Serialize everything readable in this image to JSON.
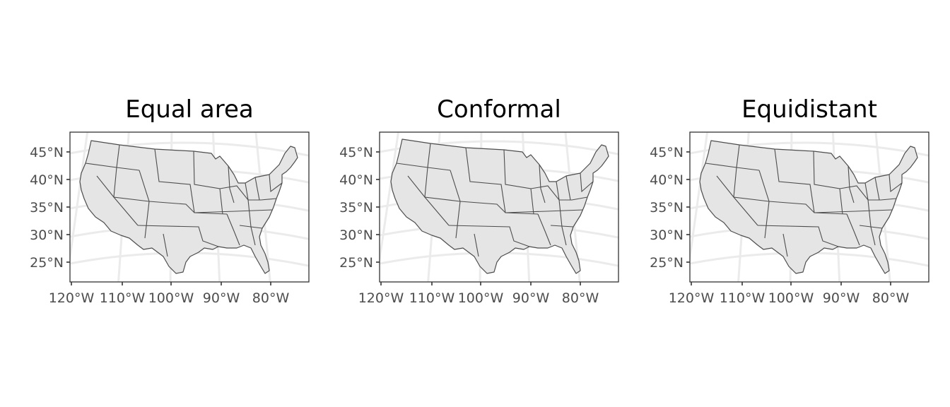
{
  "figure": {
    "panels": [
      {
        "title": "Equal area",
        "projection": "equal-area",
        "lat_labels": [
          "45°N",
          "40°N",
          "35°N",
          "30°N",
          "25°N"
        ],
        "lon_labels": [
          "120°W",
          "110°W",
          "100°W",
          "90°W",
          "80°W"
        ]
      },
      {
        "title": "Conformal",
        "projection": "conformal",
        "lat_labels": [
          "45°N",
          "40°N",
          "35°N",
          "30°N",
          "25°N"
        ],
        "lon_labels": [
          "120°W",
          "110°W",
          "100°W",
          "90°W",
          "80°W"
        ]
      },
      {
        "title": "Equidistant",
        "projection": "equidistant",
        "lat_labels": [
          "45°N",
          "40°N",
          "35°N",
          "30°N",
          "25°N"
        ],
        "lon_labels": [
          "120°W",
          "110°W",
          "100°W",
          "90°W",
          "80°W"
        ]
      }
    ],
    "colors": {
      "land_fill": "#e5e5e5",
      "border": "#4d4d4d",
      "graticule": "#ebebeb",
      "frame": "#333333",
      "tick_text": "#4d4d4d"
    }
  }
}
